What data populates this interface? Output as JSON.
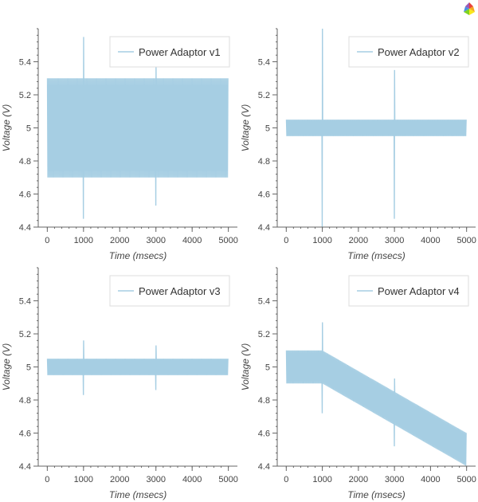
{
  "toolbar": {
    "logo_icon": "bokeh-logo-icon"
  },
  "colors": {
    "series": "#a6cee3",
    "axis": "#666666",
    "text": "#444444"
  },
  "chart_data": [
    {
      "type": "line",
      "title": "",
      "xlabel": "Time (msecs)",
      "ylabel": "Voltage (V)",
      "xlim": [
        -250,
        5250
      ],
      "ylim": [
        4.4,
        5.6
      ],
      "xticks": [
        0,
        1000,
        2000,
        3000,
        4000,
        5000
      ],
      "yticks": [
        4.4,
        4.6,
        4.8,
        5,
        5.2,
        5.4
      ],
      "ytick_labels": [
        "4.4",
        "4.6",
        "4.8",
        "5",
        "5.2",
        "5.4"
      ],
      "grid": false,
      "legend_position": "top-right",
      "series": [
        {
          "name": "Power Adaptor v1",
          "ripple_amplitude": 0.3,
          "baseline": [
            [
              0,
              5.0
            ],
            [
              5000,
              5.0
            ]
          ],
          "spikes": [
            {
              "x": 1000,
              "low": 4.45,
              "high": 5.55
            },
            {
              "x": 3000,
              "low": 4.53,
              "high": 5.37
            }
          ]
        }
      ]
    },
    {
      "type": "line",
      "title": "",
      "xlabel": "Time (msecs)",
      "ylabel": "Voltage (V)",
      "xlim": [
        -250,
        5250
      ],
      "ylim": [
        4.4,
        5.6
      ],
      "xticks": [
        0,
        1000,
        2000,
        3000,
        4000,
        5000
      ],
      "yticks": [
        4.4,
        4.6,
        4.8,
        5,
        5.2,
        5.4
      ],
      "ytick_labels": [
        "4.4",
        "4.6",
        "4.8",
        "5",
        "5.2",
        "5.4"
      ],
      "grid": false,
      "legend_position": "top-right",
      "series": [
        {
          "name": "Power Adaptor v2",
          "ripple_amplitude": 0.05,
          "baseline": [
            [
              0,
              5.0
            ],
            [
              5000,
              5.0
            ]
          ],
          "spikes": [
            {
              "x": 1000,
              "low": 4.4,
              "high": 5.6
            },
            {
              "x": 3000,
              "low": 4.45,
              "high": 5.35
            }
          ]
        }
      ]
    },
    {
      "type": "line",
      "title": "",
      "xlabel": "Time (msecs)",
      "ylabel": "Voltage (V)",
      "xlim": [
        -250,
        5250
      ],
      "ylim": [
        4.4,
        5.6
      ],
      "xticks": [
        0,
        1000,
        2000,
        3000,
        4000,
        5000
      ],
      "yticks": [
        4.4,
        4.6,
        4.8,
        5,
        5.2,
        5.4
      ],
      "ytick_labels": [
        "4.4",
        "4.6",
        "4.8",
        "5",
        "5.2",
        "5.4"
      ],
      "grid": false,
      "legend_position": "top-right",
      "series": [
        {
          "name": "Power Adaptor v3",
          "ripple_amplitude": 0.05,
          "baseline": [
            [
              0,
              5.0
            ],
            [
              5000,
              5.0
            ]
          ],
          "spikes": [
            {
              "x": 1000,
              "low": 4.83,
              "high": 5.16
            },
            {
              "x": 3000,
              "low": 4.86,
              "high": 5.13
            }
          ]
        }
      ]
    },
    {
      "type": "line",
      "title": "",
      "xlabel": "Time (msecs)",
      "ylabel": "Voltage (V)",
      "xlim": [
        -250,
        5250
      ],
      "ylim": [
        4.4,
        5.6
      ],
      "xticks": [
        0,
        1000,
        2000,
        3000,
        4000,
        5000
      ],
      "yticks": [
        4.4,
        4.6,
        4.8,
        5,
        5.2,
        5.4
      ],
      "ytick_labels": [
        "4.4",
        "4.6",
        "4.8",
        "5",
        "5.2",
        "5.4"
      ],
      "grid": false,
      "legend_position": "top-right",
      "series": [
        {
          "name": "Power Adaptor v4",
          "ripple_amplitude": 0.1,
          "baseline": [
            [
              0,
              5.0
            ],
            [
              1000,
              5.0
            ],
            [
              3000,
              4.75
            ],
            [
              5000,
              4.5
            ]
          ],
          "spikes": [
            {
              "x": 1000,
              "low": 4.72,
              "high": 5.27
            },
            {
              "x": 3000,
              "low": 4.52,
              "high": 4.93
            }
          ]
        }
      ]
    }
  ]
}
